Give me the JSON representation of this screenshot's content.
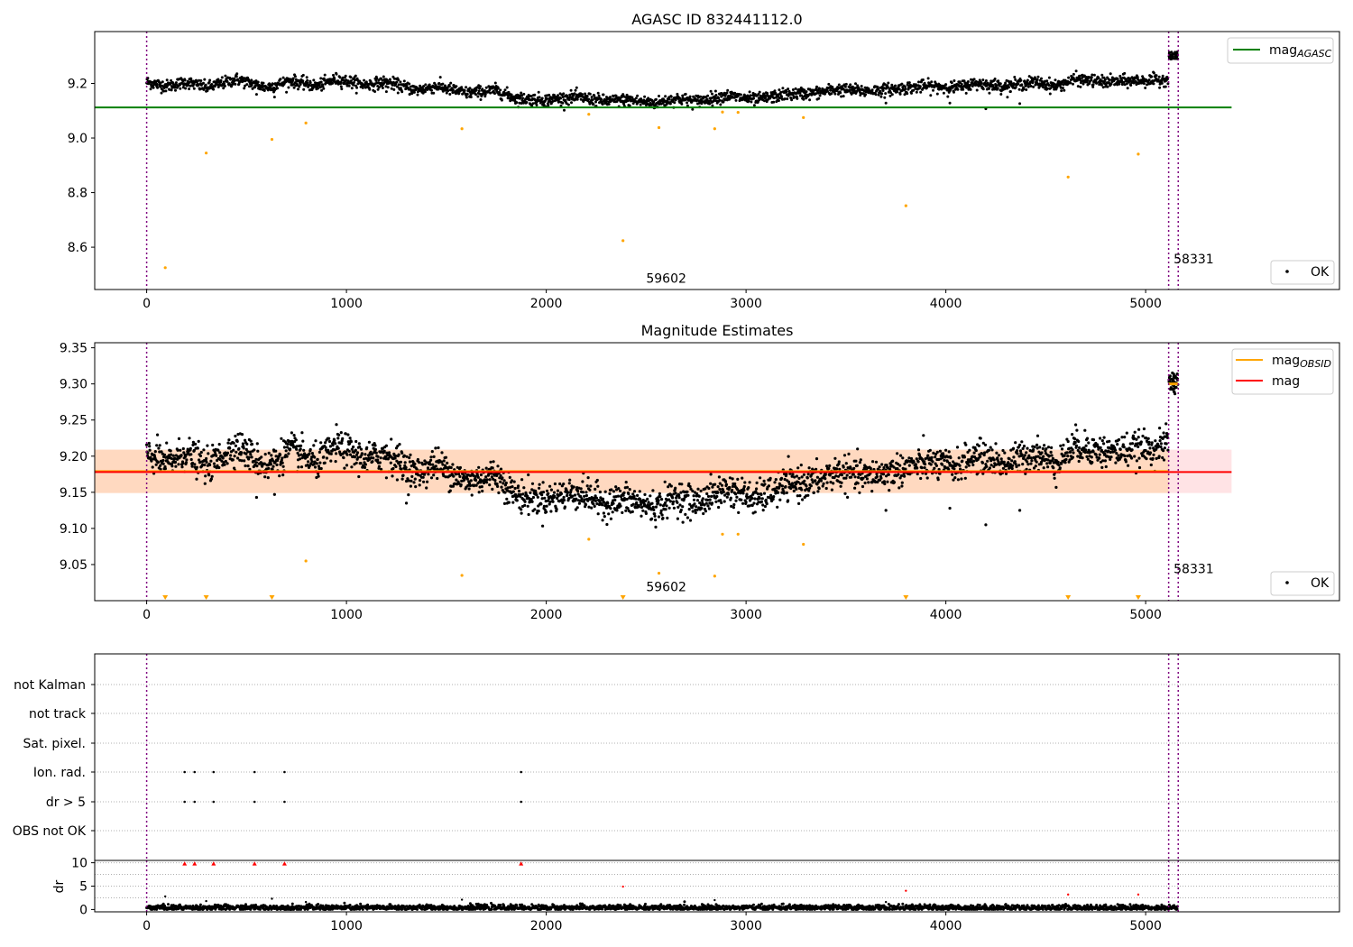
{
  "chart_data": [
    {
      "id": "panel1",
      "type": "scatter",
      "title": "AGASC ID 832441112.0",
      "xlim": [
        -260,
        5970
      ],
      "ylim": [
        8.445,
        9.39
      ],
      "xticks": [
        0,
        1000,
        2000,
        3000,
        4000,
        5000
      ],
      "yticks": [
        8.6,
        8.8,
        9.0,
        9.2
      ],
      "ytick_labels": [
        "8.6",
        "8.8",
        "9.0",
        "9.2"
      ],
      "reference_lines": [
        {
          "name": "mag",
          "subscript": "AGASC",
          "color": "#008000",
          "y": 9.112,
          "x_range": [
            -260,
            5430
          ]
        }
      ],
      "vlines": [
        0,
        5115,
        5163
      ],
      "vline_color": "#800080",
      "annotations": [
        {
          "text": "59602",
          "x": 2500,
          "y": 8.47
        },
        {
          "text": "58331",
          "x": 5140,
          "y": 8.54
        }
      ],
      "legend_top": [
        {
          "label": "mag",
          "subscript": "AGASC",
          "color": "#008000",
          "kind": "line"
        }
      ],
      "legend_bottom": [
        {
          "label": "OK",
          "color": "#000000",
          "kind": "point"
        }
      ],
      "series": [
        {
          "name": "OK",
          "color": "#000000",
          "size": 1.5,
          "trend": [
            [
              0,
              9.205
            ],
            [
              100,
              9.19
            ],
            [
              200,
              9.205
            ],
            [
              300,
              9.185
            ],
            [
              450,
              9.215
            ],
            [
              600,
              9.185
            ],
            [
              720,
              9.21
            ],
            [
              850,
              9.19
            ],
            [
              950,
              9.215
            ],
            [
              1100,
              9.195
            ],
            [
              1200,
              9.205
            ],
            [
              1350,
              9.175
            ],
            [
              1450,
              9.19
            ],
            [
              1600,
              9.165
            ],
            [
              1750,
              9.175
            ],
            [
              1850,
              9.145
            ],
            [
              2000,
              9.14
            ],
            [
              2150,
              9.15
            ],
            [
              2300,
              9.135
            ],
            [
              2400,
              9.14
            ],
            [
              2550,
              9.128
            ],
            [
              2650,
              9.145
            ],
            [
              2750,
              9.135
            ],
            [
              2900,
              9.155
            ],
            [
              3050,
              9.14
            ],
            [
              3200,
              9.16
            ],
            [
              3350,
              9.165
            ],
            [
              3450,
              9.178
            ],
            [
              3600,
              9.172
            ],
            [
              3750,
              9.18
            ],
            [
              3900,
              9.19
            ],
            [
              4050,
              9.185
            ],
            [
              4150,
              9.2
            ],
            [
              4300,
              9.19
            ],
            [
              4450,
              9.205
            ],
            [
              4550,
              9.19
            ],
            [
              4650,
              9.215
            ],
            [
              4800,
              9.205
            ],
            [
              4950,
              9.21
            ],
            [
              5080,
              9.212
            ],
            [
              5112,
              9.22
            ]
          ],
          "spread": 0.011,
          "x_range": [
            0,
            5112
          ],
          "step": 2,
          "cluster": {
            "x_range": [
              5117,
              5161
            ],
            "y": 9.302,
            "spread": 0.008,
            "count": 40
          },
          "outliers": [
            [
              550,
              9.16
            ],
            [
              640,
              9.15
            ],
            [
              1200,
              9.17
            ],
            [
              3700,
              9.128
            ],
            [
              4020,
              9.128
            ],
            [
              4200,
              9.107
            ],
            [
              4370,
              9.126
            ],
            [
              2000,
              9.115
            ],
            [
              2250,
              9.117
            ]
          ]
        },
        {
          "name": "OBS not OK",
          "color": "#FFA500",
          "size": 1.6,
          "points": [
            [
              93,
              8.525
            ],
            [
              298,
              8.945
            ],
            [
              627,
              8.995
            ],
            [
              797,
              9.055
            ],
            [
              1578,
              9.034
            ],
            [
              2213,
              9.087
            ],
            [
              2384,
              8.624
            ],
            [
              2564,
              9.038
            ],
            [
              2843,
              9.034
            ],
            [
              2882,
              9.095
            ],
            [
              2960,
              9.094
            ],
            [
              3287,
              9.075
            ],
            [
              3800,
              8.752
            ],
            [
              4612,
              8.857
            ],
            [
              4963,
              8.941
            ]
          ]
        }
      ]
    },
    {
      "id": "panel2",
      "type": "scatter",
      "title": "Magnitude Estimates",
      "xlim": [
        -260,
        5970
      ],
      "ylim": [
        9.0,
        9.357
      ],
      "xticks": [
        0,
        1000,
        2000,
        3000,
        4000,
        5000
      ],
      "yticks": [
        9.05,
        9.1,
        9.15,
        9.2,
        9.25,
        9.3,
        9.35
      ],
      "ytick_labels": [
        "9.05",
        "9.10",
        "9.15",
        "9.20",
        "9.25",
        "9.30",
        "9.35"
      ],
      "bands": [
        {
          "y_range": [
            9.149,
            9.209
          ],
          "x_range": [
            -260,
            5430
          ],
          "color": "#FF6470",
          "opacity": 0.18
        },
        {
          "y_range": [
            9.149,
            9.209
          ],
          "x_range": [
            -260,
            5115
          ],
          "color": "#FFA500",
          "opacity": 0.16
        }
      ],
      "reference_lines": [
        {
          "name": "mag",
          "subscript": "OBSID",
          "color": "#FFA500",
          "y": 9.179,
          "x_range": [
            -260,
            5115
          ],
          "width": 2.5
        },
        {
          "name": "mag",
          "subscript": "",
          "color": "#FF0000",
          "y": 9.178,
          "x_range": [
            -260,
            5430
          ],
          "width": 2
        },
        {
          "name": "mag_obsid_2",
          "subscript": "",
          "color": "#FFA500",
          "y": 9.3,
          "x_range": [
            5115,
            5163
          ],
          "width": 3
        }
      ],
      "vlines": [
        0,
        5115,
        5163
      ],
      "vline_color": "#800080",
      "annotations": [
        {
          "text": "59602",
          "x": 2500,
          "y": 9.013
        },
        {
          "text": "58331",
          "x": 5140,
          "y": 9.038
        }
      ],
      "legend_top": [
        {
          "label": "mag",
          "subscript": "OBSID",
          "color": "#FFA500",
          "kind": "line"
        },
        {
          "label": "mag",
          "subscript": "",
          "color": "#FF0000",
          "kind": "line"
        }
      ],
      "legend_bottom": [
        {
          "label": "OK",
          "color": "#000000",
          "kind": "point"
        }
      ],
      "series": [
        {
          "name": "OK",
          "color": "#000000",
          "size": 1.6,
          "trend_ref": "panel1",
          "spread": 0.011,
          "outliers": [
            [
              550,
              9.143
            ],
            [
              640,
              9.147
            ],
            [
              1200,
              9.17
            ],
            [
              3700,
              9.125
            ],
            [
              4020,
              9.128
            ],
            [
              4200,
              9.105
            ],
            [
              4370,
              9.125
            ],
            [
              1300,
              9.135
            ]
          ]
        },
        {
          "name": "OBS not OK",
          "color": "#FFA500",
          "size": 1.6,
          "points": [
            [
              797,
              9.055
            ],
            [
              1578,
              9.035
            ],
            [
              2213,
              9.085
            ],
            [
              2564,
              9.038
            ],
            [
              2843,
              9.034
            ],
            [
              2882,
              9.092
            ],
            [
              2960,
              9.092
            ],
            [
              3287,
              9.078
            ]
          ],
          "markers_low": [
            93,
            298,
            627,
            2384,
            3800,
            4612,
            4963
          ]
        }
      ]
    },
    {
      "id": "panel3",
      "type": "scatter",
      "title": "",
      "xlim": [
        -260,
        5970
      ],
      "rows": [
        "not Kalman",
        "not track",
        "Sat. pixel.",
        "Ion. rad.",
        "dr > 5",
        "OBS not OK"
      ],
      "row_points": {
        "Ion. rad.": [
          190,
          240,
          335,
          540,
          690,
          1874
        ],
        "dr > 5": [
          190,
          240,
          335,
          540,
          690,
          1874
        ]
      },
      "vlines": [
        0,
        5115,
        5163
      ],
      "vline_color": "#800080"
    },
    {
      "id": "panel4",
      "type": "scatter",
      "title": "",
      "ylabel": "dr",
      "xlim": [
        -260,
        5970
      ],
      "ylim": [
        -0.5,
        10.5
      ],
      "xticks": [
        0,
        1000,
        2000,
        3000,
        4000,
        5000
      ],
      "yticks": [
        0,
        5,
        10
      ],
      "ytick_labels": [
        "0",
        "5",
        "10"
      ],
      "vlines": [
        0,
        5115,
        5163
      ],
      "vline_color": "#800080",
      "series": [
        {
          "name": "OK",
          "color": "#000000",
          "size": 1.5,
          "base": 0.4,
          "spread": 0.3,
          "x_range": [
            0,
            5161
          ],
          "step": 2,
          "extra": [
            [
              93,
              2.8
            ],
            [
              298,
              1.8
            ],
            [
              627,
              2.3
            ],
            [
              797,
              1.6
            ],
            [
              1578,
              2.1
            ],
            [
              2843,
              2.0
            ],
            [
              3700,
              1.6
            ],
            [
              4612,
              0.9
            ]
          ]
        },
        {
          "name": "dr > 5",
          "color": "#FF0000",
          "size": 2,
          "points": [
            [
              190,
              9.8
            ],
            [
              240,
              9.8
            ],
            [
              335,
              9.8
            ],
            [
              540,
              9.8
            ],
            [
              690,
              9.8
            ],
            [
              1874,
              9.8
            ],
            [
              2384,
              4.9
            ],
            [
              3800,
              4.0
            ],
            [
              4612,
              3.2
            ],
            [
              4963,
              3.2
            ]
          ]
        }
      ]
    }
  ]
}
